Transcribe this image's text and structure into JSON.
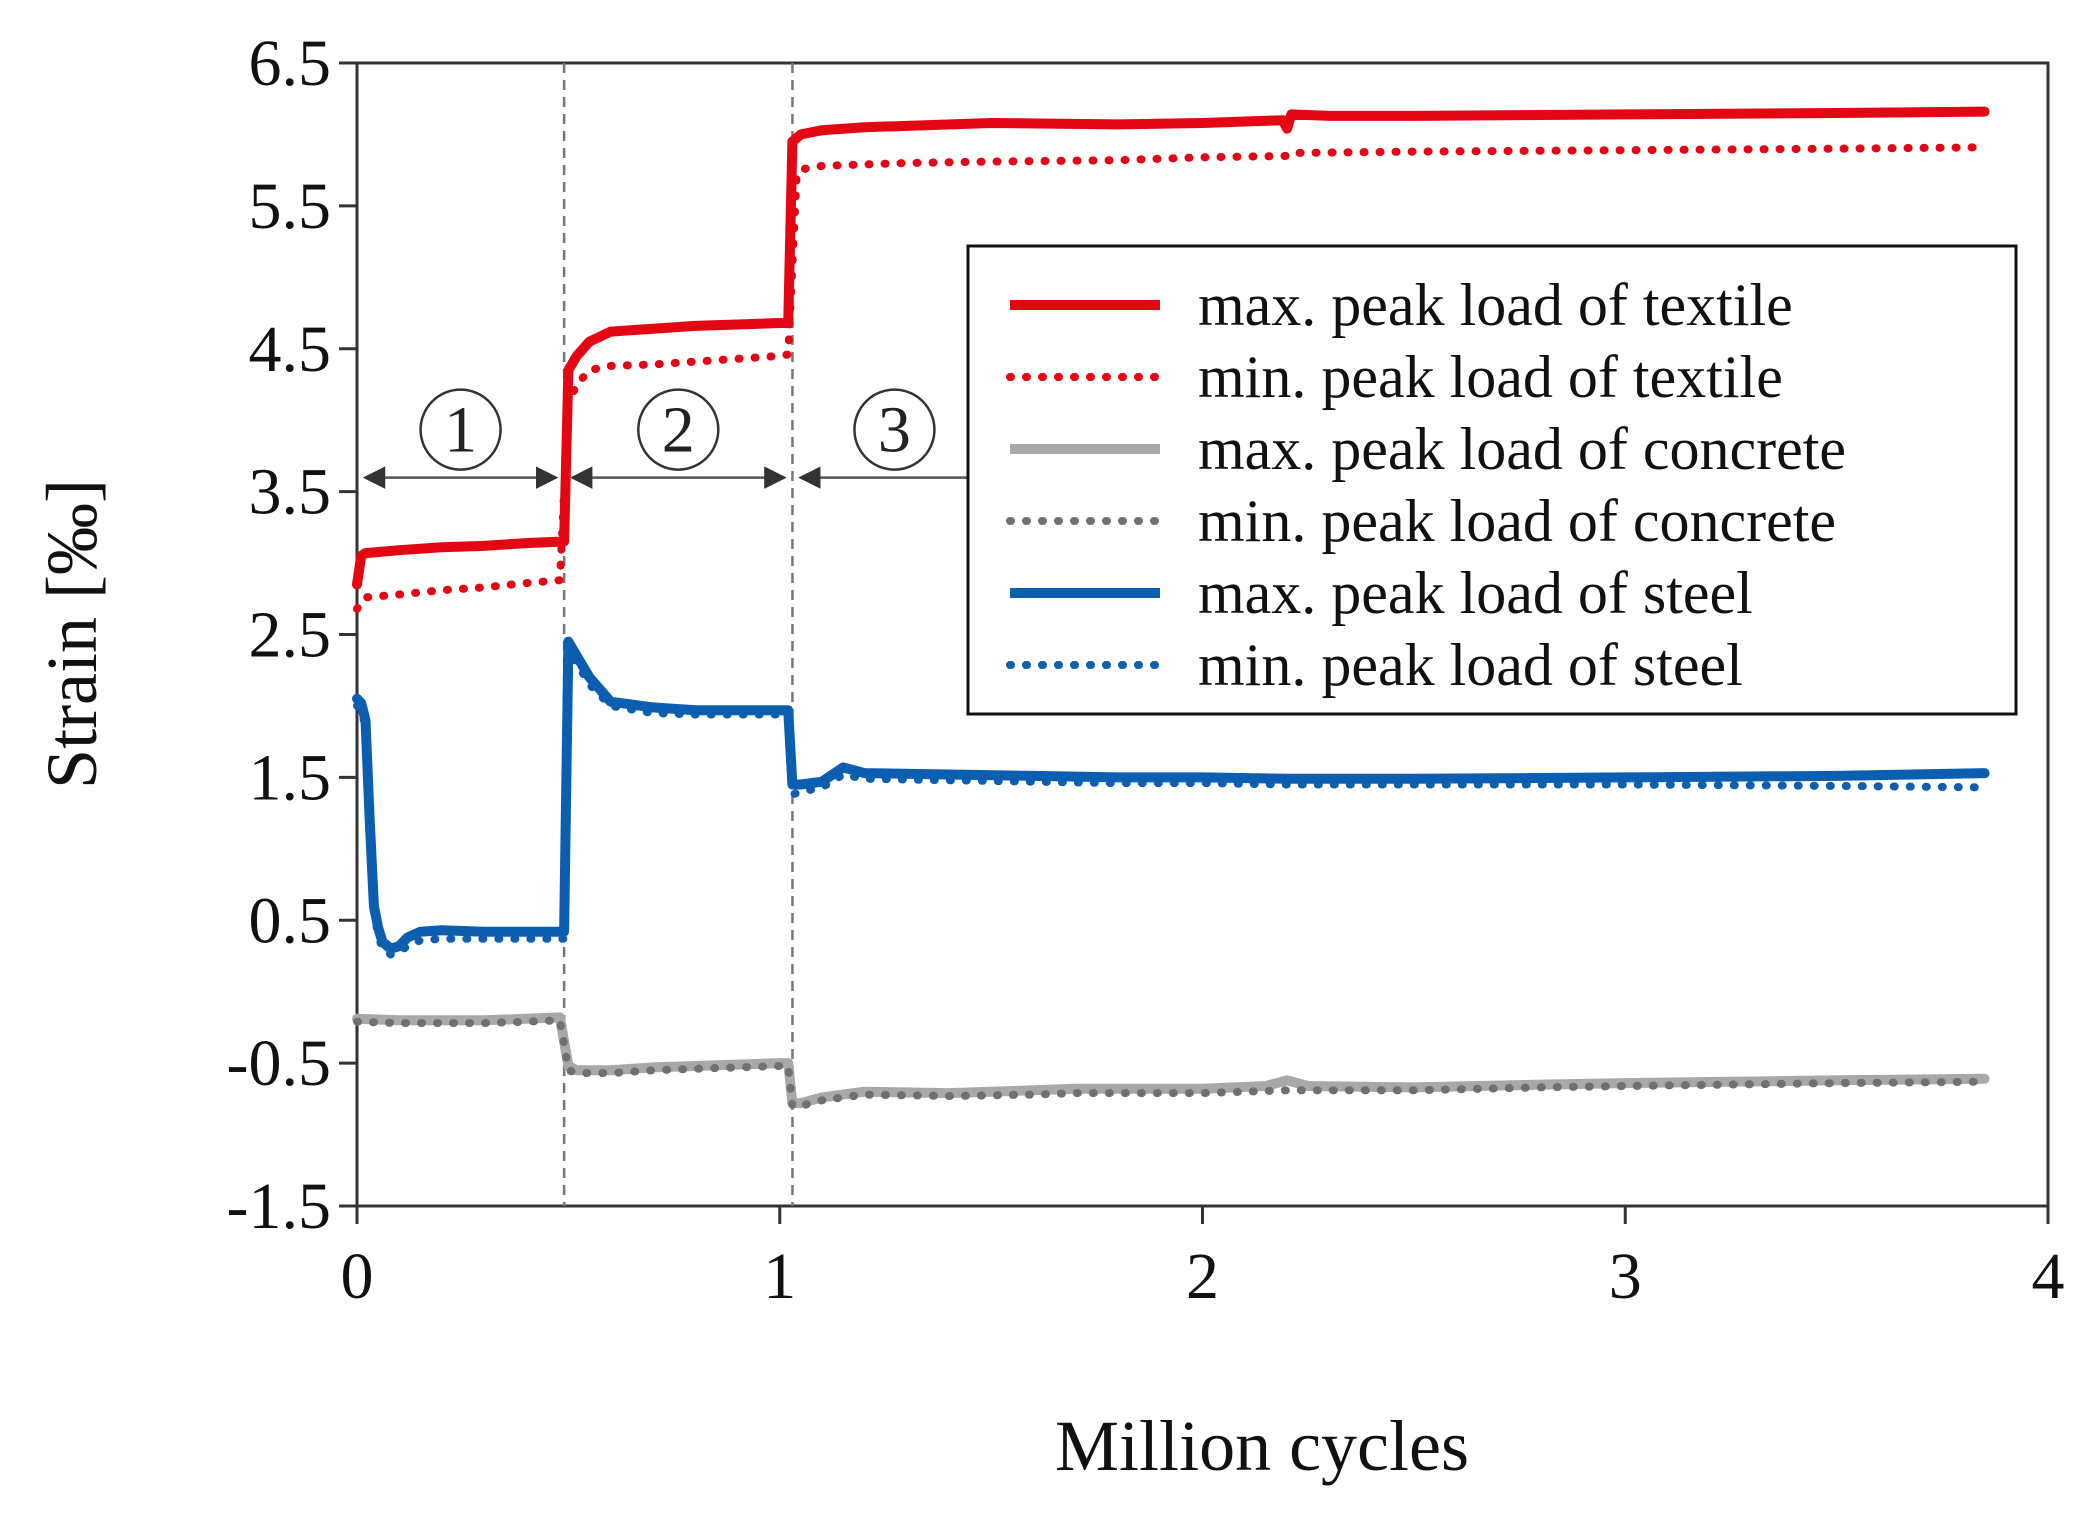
{
  "chart_data": {
    "type": "line",
    "title": "",
    "xlabel": "Million cycles",
    "ylabel": "Strain [‰]",
    "xlim": [
      0,
      4
    ],
    "ylim": [
      -1.5,
      6.5
    ],
    "x_ticks": [
      "0",
      "1",
      "2",
      "3",
      "4"
    ],
    "y_ticks": [
      "6.5",
      "5.5",
      "4.5",
      "3.5",
      "2.5",
      "1.5",
      "0.5",
      "-0.5",
      "-1.5"
    ],
    "grid": false,
    "legend_position": "top-right",
    "phase_boundaries": [
      0.49,
      1.03
    ],
    "phases": [
      {
        "label": "①",
        "x_start": 0.0,
        "x_end": 0.49
      },
      {
        "label": "②",
        "x_start": 0.49,
        "x_end": 1.03
      },
      {
        "label": "③",
        "x_start": 1.03,
        "x_end": 1.46
      }
    ],
    "series": [
      {
        "name": "max. peak load of textile",
        "color": "#e30613",
        "style": "solid",
        "x": [
          0.0,
          0.01,
          0.02,
          0.1,
          0.2,
          0.3,
          0.4,
          0.48,
          0.49,
          0.5,
          0.52,
          0.55,
          0.6,
          0.7,
          0.8,
          0.9,
          1.0,
          1.02,
          1.03,
          1.05,
          1.1,
          1.2,
          1.5,
          1.8,
          2.0,
          2.19,
          2.2,
          2.21,
          2.3,
          2.5,
          3.0,
          3.5,
          3.85
        ],
        "y": [
          2.85,
          3.05,
          3.07,
          3.09,
          3.11,
          3.12,
          3.14,
          3.15,
          3.15,
          4.35,
          4.45,
          4.55,
          4.62,
          4.64,
          4.66,
          4.67,
          4.68,
          4.68,
          5.95,
          6.0,
          6.03,
          6.05,
          6.08,
          6.07,
          6.08,
          6.1,
          6.04,
          6.14,
          6.13,
          6.13,
          6.14,
          6.15,
          6.16
        ]
      },
      {
        "name": "min. peak load of textile",
        "color": "#e30613",
        "style": "dotted",
        "x": [
          0.0,
          0.02,
          0.1,
          0.2,
          0.3,
          0.4,
          0.48,
          0.5,
          0.52,
          0.55,
          0.6,
          0.7,
          0.8,
          0.9,
          1.0,
          1.02,
          1.04,
          1.06,
          1.1,
          1.3,
          1.5,
          1.8,
          2.0,
          2.2,
          2.21,
          2.5,
          3.0,
          3.5,
          3.85
        ],
        "y": [
          2.68,
          2.76,
          2.78,
          2.81,
          2.83,
          2.86,
          2.88,
          4.12,
          4.25,
          4.35,
          4.38,
          4.39,
          4.41,
          4.43,
          4.45,
          4.46,
          5.72,
          5.76,
          5.78,
          5.8,
          5.81,
          5.82,
          5.84,
          5.85,
          5.87,
          5.88,
          5.89,
          5.9,
          5.91
        ]
      },
      {
        "name": "max. peak load of concrete",
        "color": "#a8a8a8",
        "style": "solid",
        "x": [
          0.0,
          0.1,
          0.2,
          0.3,
          0.4,
          0.48,
          0.5,
          0.52,
          0.6,
          0.7,
          0.8,
          0.9,
          1.0,
          1.02,
          1.03,
          1.05,
          1.1,
          1.2,
          1.4,
          1.6,
          1.7,
          1.8,
          2.0,
          2.15,
          2.2,
          2.25,
          2.5,
          2.8,
          3.0,
          3.5,
          3.85
        ],
        "y": [
          -0.19,
          -0.2,
          -0.2,
          -0.2,
          -0.19,
          -0.18,
          -0.52,
          -0.55,
          -0.55,
          -0.53,
          -0.52,
          -0.51,
          -0.5,
          -0.5,
          -0.78,
          -0.78,
          -0.74,
          -0.7,
          -0.71,
          -0.69,
          -0.68,
          -0.68,
          -0.68,
          -0.66,
          -0.62,
          -0.66,
          -0.67,
          -0.65,
          -0.64,
          -0.62,
          -0.61
        ]
      },
      {
        "name": "min. peak load of concrete",
        "color": "#707070",
        "style": "dotted",
        "x": [
          0.0,
          0.1,
          0.2,
          0.3,
          0.4,
          0.48,
          0.5,
          0.52,
          0.6,
          0.7,
          0.8,
          0.9,
          1.0,
          1.02,
          1.03,
          1.05,
          1.1,
          1.2,
          1.4,
          1.6,
          1.7,
          1.8,
          2.0,
          2.2,
          2.5,
          2.8,
          3.0,
          3.5,
          3.85
        ],
        "y": [
          -0.21,
          -0.22,
          -0.22,
          -0.22,
          -0.21,
          -0.2,
          -0.55,
          -0.57,
          -0.57,
          -0.55,
          -0.54,
          -0.53,
          -0.52,
          -0.52,
          -0.8,
          -0.8,
          -0.76,
          -0.72,
          -0.73,
          -0.72,
          -0.71,
          -0.71,
          -0.71,
          -0.69,
          -0.69,
          -0.67,
          -0.66,
          -0.64,
          -0.63
        ]
      },
      {
        "name": "max. peak load of steel",
        "color": "#0b5eb0",
        "style": "solid",
        "x": [
          0.0,
          0.01,
          0.02,
          0.03,
          0.04,
          0.05,
          0.06,
          0.08,
          0.1,
          0.12,
          0.15,
          0.2,
          0.3,
          0.4,
          0.48,
          0.49,
          0.5,
          0.52,
          0.55,
          0.6,
          0.7,
          0.8,
          0.9,
          1.0,
          1.02,
          1.03,
          1.05,
          1.1,
          1.15,
          1.2,
          1.4,
          1.6,
          1.8,
          2.0,
          2.2,
          2.5,
          3.0,
          3.5,
          3.85
        ],
        "y": [
          2.05,
          2.02,
          1.9,
          1.2,
          0.6,
          0.45,
          0.35,
          0.3,
          0.32,
          0.38,
          0.42,
          0.43,
          0.42,
          0.42,
          0.42,
          0.42,
          2.45,
          2.35,
          2.2,
          2.03,
          1.99,
          1.97,
          1.97,
          1.97,
          1.97,
          1.45,
          1.45,
          1.47,
          1.57,
          1.53,
          1.52,
          1.51,
          1.5,
          1.5,
          1.49,
          1.49,
          1.5,
          1.51,
          1.53
        ]
      },
      {
        "name": "min. peak load of steel",
        "color": "#0b5eb0",
        "style": "dotted",
        "x": [
          0.0,
          0.01,
          0.02,
          0.03,
          0.04,
          0.05,
          0.06,
          0.08,
          0.1,
          0.12,
          0.15,
          0.2,
          0.3,
          0.4,
          0.48,
          0.49,
          0.5,
          0.52,
          0.55,
          0.6,
          0.7,
          0.8,
          0.9,
          1.0,
          1.02,
          1.03,
          1.05,
          1.1,
          1.15,
          1.2,
          1.4,
          1.6,
          1.8,
          2.0,
          2.2,
          2.5,
          3.0,
          3.5,
          3.85
        ],
        "y": [
          2.0,
          1.98,
          1.85,
          1.15,
          0.55,
          0.4,
          0.3,
          0.26,
          0.28,
          0.32,
          0.36,
          0.37,
          0.37,
          0.37,
          0.37,
          0.37,
          2.4,
          2.3,
          2.15,
          2.0,
          1.95,
          1.94,
          1.94,
          1.94,
          1.94,
          1.38,
          1.4,
          1.43,
          1.52,
          1.49,
          1.48,
          1.47,
          1.46,
          1.46,
          1.45,
          1.45,
          1.45,
          1.44,
          1.43
        ]
      }
    ]
  }
}
